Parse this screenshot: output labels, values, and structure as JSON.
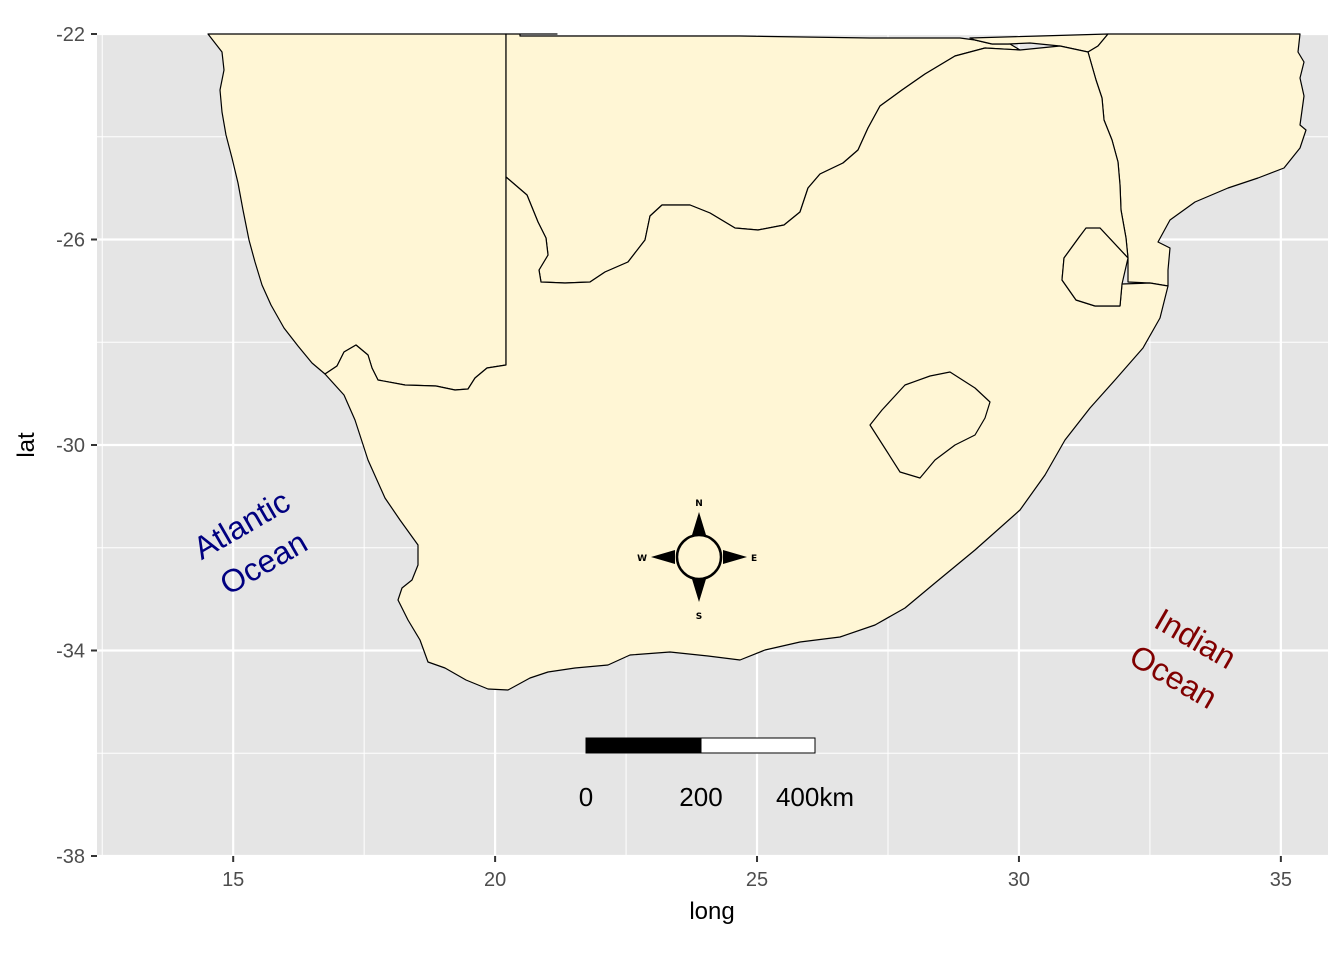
{
  "map": {
    "type": "map",
    "xlabel": "long",
    "ylabel": "lat",
    "xlim": [
      12.4,
      35.9
    ],
    "ylim": [
      -38.0,
      -22.0
    ],
    "x_ticks": [
      15,
      20,
      25,
      30,
      35
    ],
    "y_ticks": [
      -22,
      -26,
      -30,
      -34,
      -38
    ],
    "x_tick_labels": [
      "15",
      "20",
      "25",
      "30",
      "35"
    ],
    "y_tick_labels": [
      "-22",
      "-26",
      "-30",
      "-34",
      "-38"
    ],
    "grid": true,
    "colors": {
      "panel_background": "#e5e5e5",
      "grid": "#ffffff",
      "land": "#fff6d5",
      "border": "#000000"
    }
  },
  "annotations": {
    "atlantic": {
      "line1": "Atlantic",
      "line2": "Ocean",
      "color": "#000080"
    },
    "indian": {
      "line1": "Indian",
      "line2": "Ocean",
      "color": "#800000"
    }
  },
  "scalebar": {
    "labels": [
      "0",
      "200",
      "400km"
    ],
    "distance_km": 400
  },
  "north_arrow": {
    "labels": {
      "n": "N",
      "s": "S",
      "e": "E",
      "w": "W"
    },
    "icon": "compass-rose-icon"
  }
}
